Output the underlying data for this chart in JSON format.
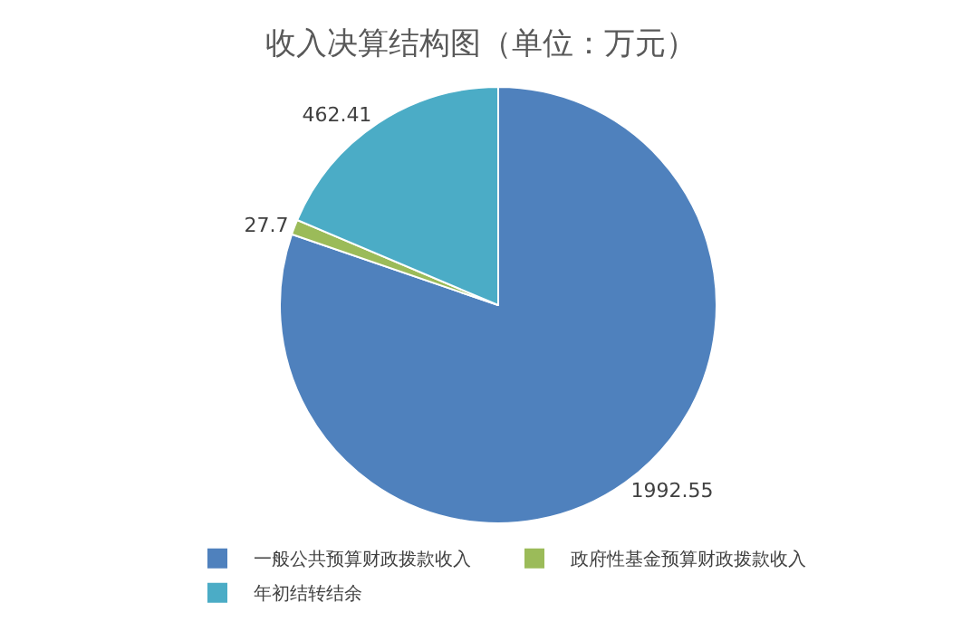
{
  "chart_data": {
    "type": "pie",
    "title": "收入决算结构图（单位：万元）",
    "categories": [
      "一般公共预算财政拨款收入",
      "政府性基金预算财政拨款收入",
      "年初结转结余"
    ],
    "values": [
      1992.55,
      27.7,
      462.41
    ],
    "colors": [
      "#4f81bd",
      "#9bbb59",
      "#4bacc6"
    ],
    "data_labels": true,
    "legend": "bottom"
  }
}
